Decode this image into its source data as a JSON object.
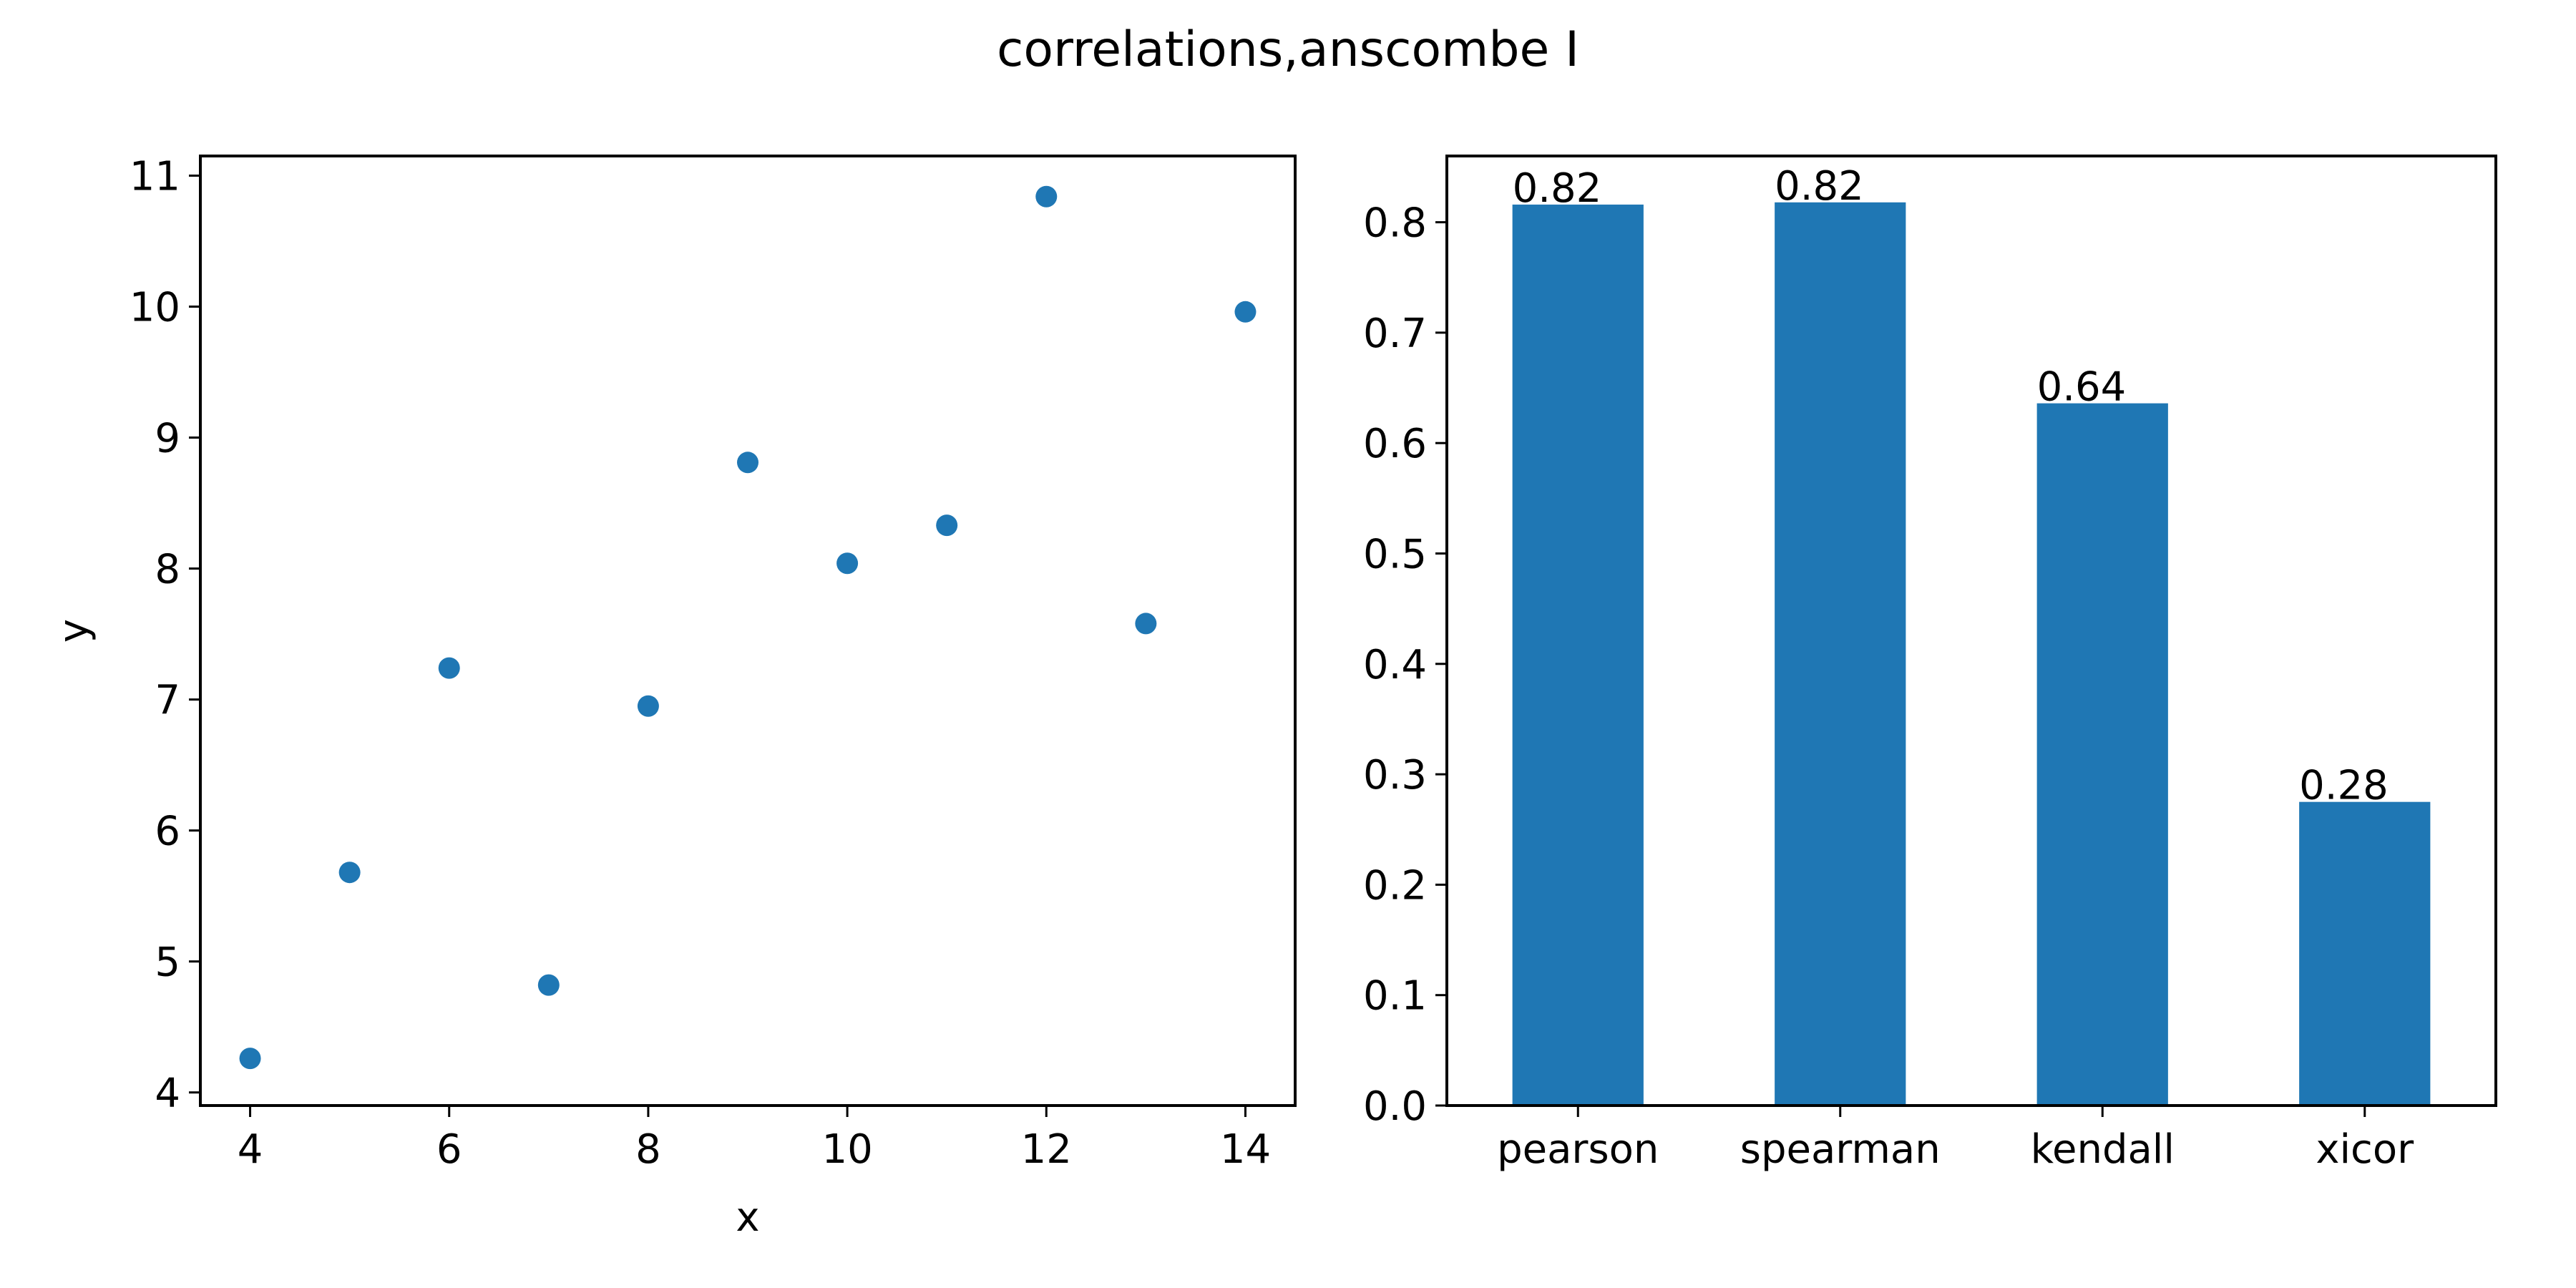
{
  "figure": {
    "title": "correlations,anscombe I"
  },
  "chart_data": [
    {
      "type": "scatter",
      "title": "",
      "xlabel": "x",
      "ylabel": "y",
      "xlim": [
        3.5,
        14.5
      ],
      "ylim": [
        3.9,
        11.15
      ],
      "xticks": [
        4,
        6,
        8,
        10,
        12,
        14
      ],
      "yticks": [
        4,
        5,
        6,
        7,
        8,
        9,
        10,
        11
      ],
      "color": "#1f77b4",
      "grid": false,
      "points": [
        {
          "x": 10,
          "y": 8.04
        },
        {
          "x": 8,
          "y": 6.95
        },
        {
          "x": 13,
          "y": 7.58
        },
        {
          "x": 9,
          "y": 8.81
        },
        {
          "x": 11,
          "y": 8.33
        },
        {
          "x": 14,
          "y": 9.96
        },
        {
          "x": 6,
          "y": 7.24
        },
        {
          "x": 4,
          "y": 4.26
        },
        {
          "x": 12,
          "y": 10.84
        },
        {
          "x": 7,
          "y": 4.82
        },
        {
          "x": 5,
          "y": 5.68
        }
      ]
    },
    {
      "type": "bar",
      "title": "",
      "xlabel": "",
      "ylabel": "",
      "categories": [
        "pearson",
        "spearman",
        "kendall",
        "xicor"
      ],
      "values": [
        0.816,
        0.818,
        0.636,
        0.275
      ],
      "value_labels": [
        "0.82",
        "0.82",
        "0.64",
        "0.28"
      ],
      "ylim": [
        0,
        0.86
      ],
      "yticks": [
        "0.0",
        "0.1",
        "0.2",
        "0.3",
        "0.4",
        "0.5",
        "0.6",
        "0.7",
        "0.8"
      ],
      "color": "#1f77b4",
      "grid": false
    }
  ]
}
